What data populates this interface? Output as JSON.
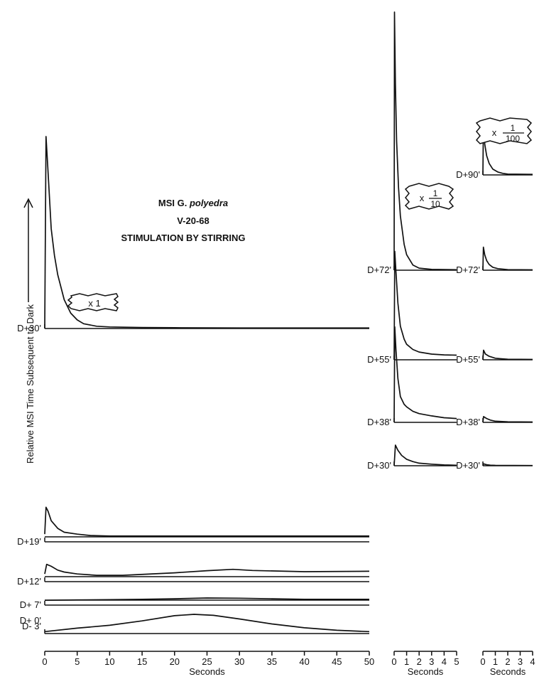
{
  "title": {
    "line1_prefix": "MSI G.",
    "line1_species": "polyedra",
    "line2": "V-20-68",
    "line3": "STIMULATION BY STIRRING"
  },
  "ylabel": "Relative MSI Time Subsequent to Dark",
  "chart_data": [
    {
      "type": "line",
      "panel": "left",
      "scale": "x1",
      "scale_label": "x 1",
      "xlabel": "Seconds",
      "xlim": [
        0,
        50
      ],
      "xticks": [
        0,
        5,
        10,
        15,
        20,
        25,
        30,
        35,
        40,
        45,
        50
      ],
      "series": [
        {
          "name": "D+30'",
          "x": [
            0,
            0.2,
            0.5,
            1,
            1.5,
            2,
            3,
            4,
            5,
            6,
            8,
            10,
            15,
            20,
            30,
            50
          ],
          "y": [
            0,
            100,
            82,
            52,
            38,
            28,
            15,
            8,
            4.5,
            2.5,
            1.2,
            0.8,
            0.5,
            0.4,
            0.3,
            0.3
          ]
        },
        {
          "name": "D+19'",
          "x": [
            0,
            0.2,
            0.5,
            1,
            2,
            3,
            5,
            7,
            10,
            20,
            30,
            50
          ],
          "y": [
            4,
            18,
            16,
            11,
            7,
            5,
            4,
            3.3,
            3,
            3,
            3,
            3
          ]
        },
        {
          "name": "D+12'",
          "x": [
            0,
            0.3,
            1,
            2,
            3,
            5,
            8,
            12,
            20,
            25,
            29,
            32,
            40,
            50
          ],
          "y": [
            4,
            9,
            8,
            6,
            5,
            4,
            3.3,
            3.3,
            4.6,
            5.7,
            6.4,
            5.8,
            5.2,
            5.4
          ]
        },
        {
          "name": "D+ 7'",
          "x": [
            0,
            5,
            10,
            15,
            20,
            25,
            30,
            35,
            40,
            50
          ],
          "y": [
            2.5,
            2.7,
            2.8,
            3,
            3.3,
            3.7,
            3.6,
            3.3,
            3,
            3
          ]
        },
        {
          "name": "D- 3'",
          "x": [
            0,
            5,
            10,
            15,
            20,
            23,
            26,
            30,
            35,
            40,
            45,
            50
          ],
          "y": [
            1,
            2.8,
            4.3,
            6.6,
            9.3,
            10,
            9.5,
            7.6,
            5,
            3,
            1.7,
            1
          ]
        }
      ],
      "rows": [
        "D+30'",
        "D+19'",
        "D+12'",
        "D+ 7'",
        "D+ 0'",
        "D- 3'"
      ]
    },
    {
      "type": "line",
      "panel": "middle",
      "scale": "x 1/10",
      "scale_label": {
        "prefix": "x",
        "num": "1",
        "den": "10"
      },
      "xlabel": "Seconds",
      "xlim": [
        0,
        5
      ],
      "xticks": [
        0,
        1,
        2,
        3,
        4,
        5
      ],
      "series": [
        {
          "name": "D+72'",
          "x": [
            0,
            0.03,
            0.1,
            0.2,
            0.35,
            0.5,
            0.8,
            1,
            1.5,
            2,
            3,
            5
          ],
          "y": [
            0,
            100,
            72,
            50,
            32,
            21,
            10,
            6,
            2,
            0.8,
            0.3,
            0.2
          ]
        },
        {
          "name": "D+55'",
          "x": [
            0,
            0.05,
            0.15,
            0.3,
            0.5,
            0.8,
            1,
            1.5,
            2,
            3,
            4,
            5
          ],
          "y": [
            0,
            42,
            34,
            22,
            13,
            8,
            6,
            4,
            3,
            2.2,
            1.9,
            1.8
          ]
        },
        {
          "name": "D+38'",
          "x": [
            0,
            0.05,
            0.15,
            0.3,
            0.5,
            0.8,
            1,
            1.5,
            2,
            3,
            4,
            5
          ],
          "y": [
            0,
            37,
            28,
            17,
            10,
            7,
            6,
            4.3,
            3.4,
            2.5,
            1.8,
            1.5
          ]
        },
        {
          "name": "D+30'",
          "x": [
            0,
            0.1,
            0.3,
            0.6,
            1,
            1.5,
            2,
            3,
            4,
            5
          ],
          "y": [
            0,
            8,
            6,
            4,
            2.5,
            1.6,
            1,
            0.6,
            0.3,
            0.2
          ]
        }
      ]
    },
    {
      "type": "line",
      "panel": "right",
      "scale": "x 1/100",
      "scale_label": {
        "prefix": "x",
        "num": "1",
        "den": "100"
      },
      "xlabel": "Seconds",
      "xlim": [
        0,
        4
      ],
      "xticks": [
        0,
        1,
        2,
        3,
        4
      ],
      "series": [
        {
          "name": "D+90'",
          "x": [
            0,
            0.04,
            0.15,
            0.3,
            0.5,
            0.8,
            1.2,
            1.6,
            2,
            4
          ],
          "y": [
            0,
            26,
            16,
            10,
            6,
            3,
            1.5,
            0.8,
            0.4,
            0.3
          ]
        },
        {
          "name": "D+72'",
          "x": [
            0,
            0.04,
            0.15,
            0.3,
            0.5,
            0.8,
            1.2,
            2,
            4
          ],
          "y": [
            0,
            12,
            8,
            5,
            3,
            1.5,
            0.8,
            0.3,
            0.2
          ]
        },
        {
          "name": "D+55'",
          "x": [
            0,
            0.05,
            0.2,
            0.5,
            1,
            1.5,
            2,
            4
          ],
          "y": [
            0,
            5,
            3,
            1.8,
            0.8,
            0.5,
            0.3,
            0.2
          ]
        },
        {
          "name": "D+38'",
          "x": [
            0,
            0.05,
            0.3,
            0.6,
            1,
            2,
            4
          ],
          "y": [
            0,
            3,
            2,
            1.2,
            0.6,
            0.3,
            0.2
          ]
        },
        {
          "name": "D+30'",
          "x": [
            0,
            0.05,
            0.3,
            0.6,
            1,
            4
          ],
          "y": [
            0,
            1,
            0.5,
            0.3,
            0.2,
            0.1
          ]
        }
      ]
    }
  ]
}
